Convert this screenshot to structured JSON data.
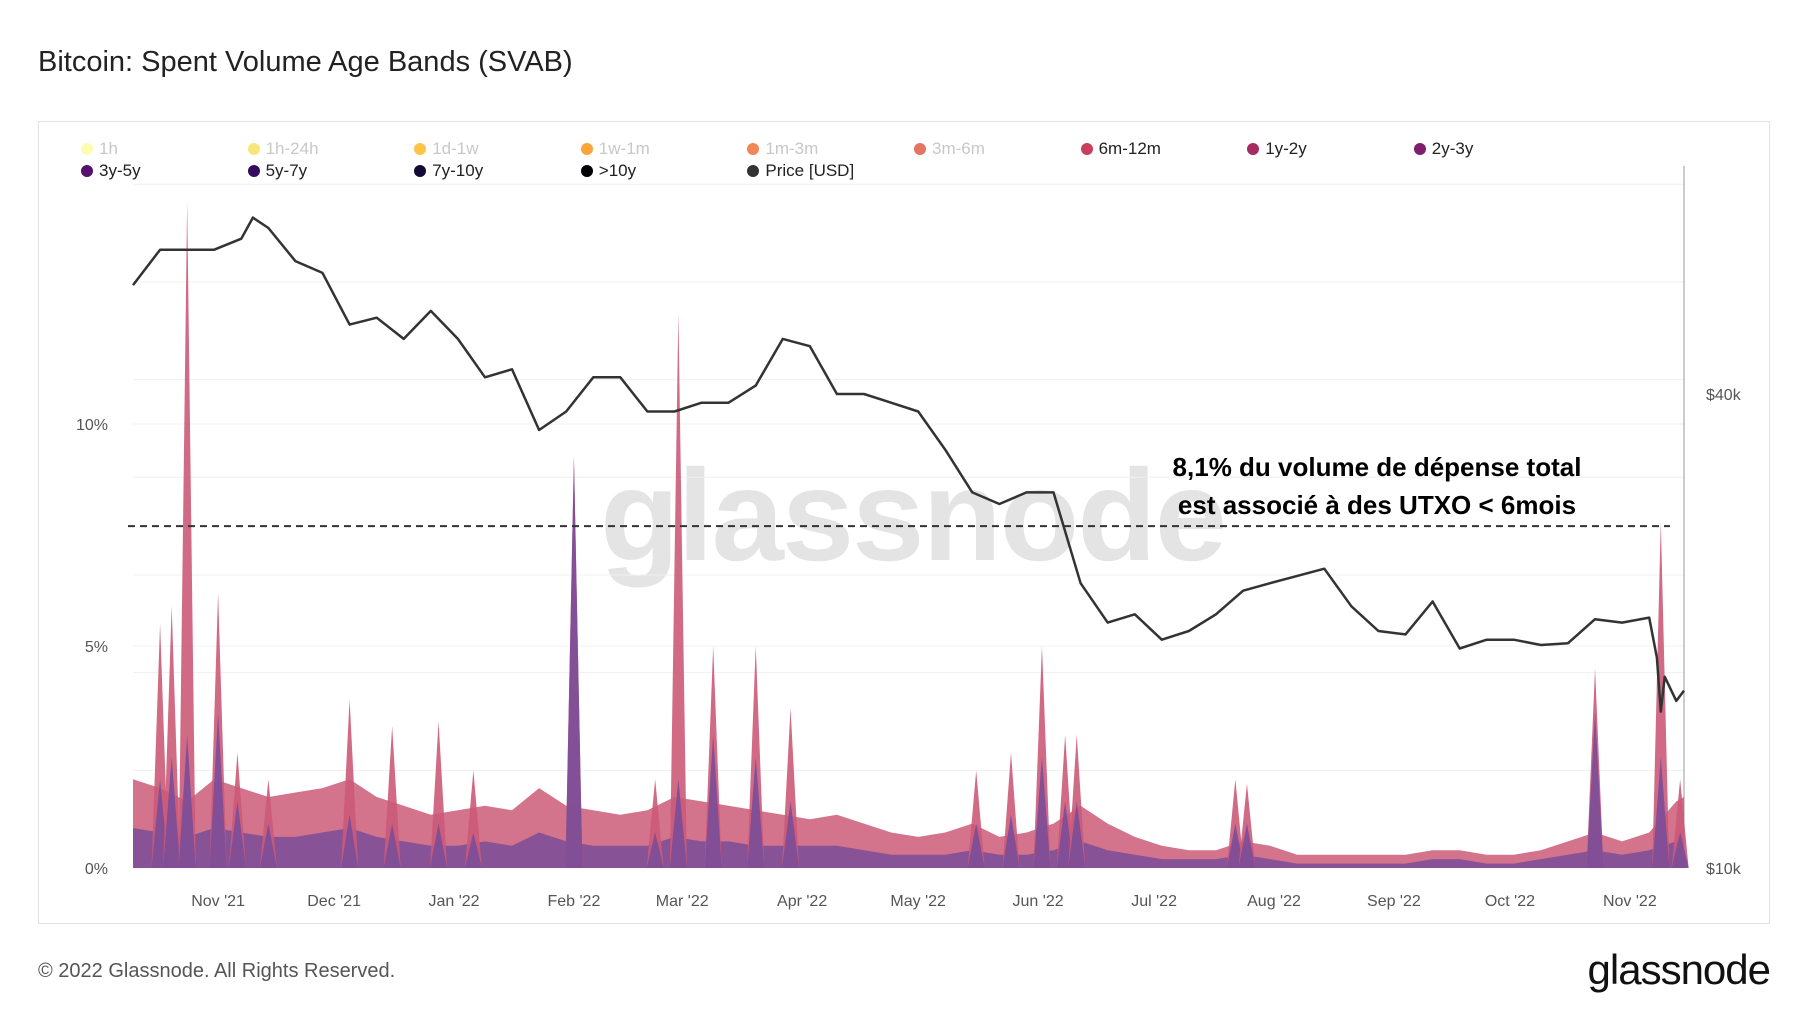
{
  "title": "Bitcoin: Spent Volume Age Bands (SVAB)",
  "footer": "© 2022 Glassnode. All Rights Reserved.",
  "logo": "glassnode",
  "watermark": "glassnode",
  "annotation": [
    "8,1% du volume de dépense total",
    "est associé à des UTXO < 6mois"
  ],
  "legend": [
    {
      "label": "1h",
      "color": "#fdfd9f",
      "active": false
    },
    {
      "label": "1h-24h",
      "color": "#f6e05a",
      "active": false
    },
    {
      "label": "1d-1w",
      "color": "#fbb61a",
      "active": false
    },
    {
      "label": "1w-1m",
      "color": "#f98e09",
      "active": false
    },
    {
      "label": "1m-3m",
      "color": "#ec6929",
      "active": false
    },
    {
      "label": "3m-6m",
      "color": "#dd513a",
      "active": false
    },
    {
      "label": "6m-12m",
      "color": "#c83f5e",
      "active": true
    },
    {
      "label": "1y-2y",
      "color": "#a52c60",
      "active": true
    },
    {
      "label": "2y-3y",
      "color": "#7f1e6d",
      "active": true
    },
    {
      "label": "3y-5y",
      "color": "#57106e",
      "active": true
    },
    {
      "label": "5y-7y",
      "color": "#330a5f",
      "active": true
    },
    {
      "label": "7y-10y",
      "color": "#140b35",
      "active": true
    },
    {
      "label": ">10y",
      "color": "#000004",
      "active": true
    },
    {
      "label": "Price [USD]",
      "color": "#333333",
      "active": true
    }
  ],
  "chart_data": {
    "type": "area",
    "x_range": [
      "2021-10-10",
      "2022-11-15"
    ],
    "x_ticks": [
      "Nov '21",
      "Dec '21",
      "Jan '22",
      "Feb '22",
      "Mar '22",
      "Apr '22",
      "May '22",
      "Jun '22",
      "Jul '22",
      "Aug '22",
      "Sep '22",
      "Oct '22",
      "Nov '22"
    ],
    "x_tick_dates": [
      "2021-11-01",
      "2021-12-01",
      "2022-01-01",
      "2022-02-01",
      "2022-03-01",
      "2022-04-01",
      "2022-05-01",
      "2022-06-01",
      "2022-07-01",
      "2022-08-01",
      "2022-09-01",
      "2022-10-01",
      "2022-11-01"
    ],
    "y_left": {
      "ticks": [
        "0%",
        "5%",
        "10%"
      ],
      "tick_values": [
        0,
        5,
        10
      ],
      "range": [
        0,
        15.9
      ]
    },
    "y_right": {
      "ticks": [
        "$10k",
        "$40k"
      ],
      "tick_values": [
        10000,
        40000
      ],
      "scale": "log"
    },
    "grid": true,
    "reference_line": {
      "value": 7.7,
      "style": "dashed"
    },
    "colors": {
      "young_bands": "#cc5a78",
      "older_bands": "#7a4c98",
      "price": "#333333"
    },
    "volume_baseline": [
      [
        "2021-10-10",
        2.0,
        0.9
      ],
      [
        "2021-10-17",
        1.8,
        0.8
      ],
      [
        "2021-10-24",
        1.5,
        0.7
      ],
      [
        "2021-10-31",
        2.0,
        0.9
      ],
      [
        "2021-11-07",
        1.8,
        0.8
      ],
      [
        "2021-11-14",
        1.6,
        0.7
      ],
      [
        "2021-11-21",
        1.7,
        0.7
      ],
      [
        "2021-11-28",
        1.8,
        0.8
      ],
      [
        "2021-12-05",
        2.0,
        0.9
      ],
      [
        "2021-12-12",
        1.6,
        0.7
      ],
      [
        "2021-12-19",
        1.4,
        0.6
      ],
      [
        "2021-12-26",
        1.2,
        0.5
      ],
      [
        "2022-01-02",
        1.3,
        0.5
      ],
      [
        "2022-01-09",
        1.4,
        0.6
      ],
      [
        "2022-01-16",
        1.3,
        0.5
      ],
      [
        "2022-01-23",
        1.8,
        0.8
      ],
      [
        "2022-01-30",
        1.4,
        0.6
      ],
      [
        "2022-02-06",
        1.3,
        0.5
      ],
      [
        "2022-02-13",
        1.2,
        0.5
      ],
      [
        "2022-02-20",
        1.3,
        0.5
      ],
      [
        "2022-02-27",
        1.6,
        0.7
      ],
      [
        "2022-03-06",
        1.5,
        0.6
      ],
      [
        "2022-03-13",
        1.4,
        0.6
      ],
      [
        "2022-03-20",
        1.3,
        0.5
      ],
      [
        "2022-03-27",
        1.2,
        0.5
      ],
      [
        "2022-04-03",
        1.1,
        0.5
      ],
      [
        "2022-04-10",
        1.2,
        0.5
      ],
      [
        "2022-04-17",
        1.0,
        0.4
      ],
      [
        "2022-04-24",
        0.8,
        0.3
      ],
      [
        "2022-05-01",
        0.7,
        0.3
      ],
      [
        "2022-05-08",
        0.8,
        0.3
      ],
      [
        "2022-05-15",
        1.0,
        0.4
      ],
      [
        "2022-05-22",
        0.7,
        0.3
      ],
      [
        "2022-05-29",
        0.8,
        0.3
      ],
      [
        "2022-06-05",
        1.0,
        0.4
      ],
      [
        "2022-06-12",
        1.4,
        0.6
      ],
      [
        "2022-06-19",
        1.0,
        0.4
      ],
      [
        "2022-06-26",
        0.7,
        0.3
      ],
      [
        "2022-07-03",
        0.5,
        0.2
      ],
      [
        "2022-07-10",
        0.4,
        0.2
      ],
      [
        "2022-07-17",
        0.4,
        0.2
      ],
      [
        "2022-07-24",
        0.6,
        0.3
      ],
      [
        "2022-07-31",
        0.5,
        0.2
      ],
      [
        "2022-08-07",
        0.3,
        0.1
      ],
      [
        "2022-08-14",
        0.3,
        0.1
      ],
      [
        "2022-08-21",
        0.3,
        0.1
      ],
      [
        "2022-08-28",
        0.3,
        0.1
      ],
      [
        "2022-09-04",
        0.3,
        0.1
      ],
      [
        "2022-09-11",
        0.4,
        0.2
      ],
      [
        "2022-09-18",
        0.4,
        0.2
      ],
      [
        "2022-09-25",
        0.3,
        0.1
      ],
      [
        "2022-10-02",
        0.3,
        0.1
      ],
      [
        "2022-10-09",
        0.4,
        0.2
      ],
      [
        "2022-10-16",
        0.6,
        0.3
      ],
      [
        "2022-10-23",
        0.8,
        0.4
      ],
      [
        "2022-10-30",
        0.6,
        0.3
      ],
      [
        "2022-11-06",
        0.8,
        0.4
      ],
      [
        "2022-11-13",
        1.5,
        0.6
      ],
      [
        "2022-11-15",
        1.6,
        0.6
      ]
    ],
    "volume_spikes": [
      [
        "2021-10-17",
        5.5,
        2.0
      ],
      [
        "2021-10-20",
        5.9,
        2.5
      ],
      [
        "2021-10-24",
        15.0,
        3.0
      ],
      [
        "2021-11-01",
        6.2,
        3.5
      ],
      [
        "2021-11-06",
        2.6,
        1.5
      ],
      [
        "2021-11-14",
        2.0,
        1.0
      ],
      [
        "2021-12-05",
        3.8,
        1.2
      ],
      [
        "2021-12-16",
        3.2,
        1.0
      ],
      [
        "2021-12-28",
        3.3,
        1.0
      ],
      [
        "2022-01-06",
        2.2,
        0.8
      ],
      [
        "2022-02-01",
        9.3,
        9.2
      ],
      [
        "2022-02-22",
        2.0,
        0.8
      ],
      [
        "2022-02-28",
        12.5,
        2.0
      ],
      [
        "2022-03-09",
        5.0,
        3.0
      ],
      [
        "2022-03-20",
        5.0,
        2.5
      ],
      [
        "2022-03-29",
        3.6,
        1.5
      ],
      [
        "2022-05-16",
        2.2,
        1.0
      ],
      [
        "2022-05-25",
        2.6,
        1.2
      ],
      [
        "2022-06-02",
        5.0,
        2.5
      ],
      [
        "2022-06-08",
        3.0,
        1.5
      ],
      [
        "2022-06-11",
        3.0,
        1.5
      ],
      [
        "2022-07-22",
        2.0,
        1.0
      ],
      [
        "2022-07-25",
        1.9,
        1.0
      ],
      [
        "2022-10-23",
        4.5,
        3.5
      ],
      [
        "2022-11-09",
        7.8,
        2.5
      ],
      [
        "2022-11-14",
        2.0,
        0.8
      ]
    ],
    "price": [
      [
        "2021-10-10",
        55000
      ],
      [
        "2021-10-17",
        61000
      ],
      [
        "2021-10-24",
        61000
      ],
      [
        "2021-10-31",
        61000
      ],
      [
        "2021-11-07",
        63000
      ],
      [
        "2021-11-10",
        67000
      ],
      [
        "2021-11-14",
        65000
      ],
      [
        "2021-11-21",
        59000
      ],
      [
        "2021-11-28",
        57000
      ],
      [
        "2021-12-05",
        49000
      ],
      [
        "2021-12-12",
        50000
      ],
      [
        "2021-12-19",
        47000
      ],
      [
        "2021-12-26",
        51000
      ],
      [
        "2022-01-02",
        47000
      ],
      [
        "2022-01-09",
        42000
      ],
      [
        "2022-01-16",
        43000
      ],
      [
        "2022-01-23",
        36000
      ],
      [
        "2022-01-30",
        38000
      ],
      [
        "2022-02-06",
        42000
      ],
      [
        "2022-02-13",
        42000
      ],
      [
        "2022-02-20",
        38000
      ],
      [
        "2022-02-27",
        38000
      ],
      [
        "2022-03-06",
        39000
      ],
      [
        "2022-03-13",
        39000
      ],
      [
        "2022-03-20",
        41000
      ],
      [
        "2022-03-27",
        47000
      ],
      [
        "2022-04-03",
        46000
      ],
      [
        "2022-04-10",
        40000
      ],
      [
        "2022-04-17",
        40000
      ],
      [
        "2022-04-24",
        39000
      ],
      [
        "2022-05-01",
        38000
      ],
      [
        "2022-05-08",
        34000
      ],
      [
        "2022-05-15",
        30000
      ],
      [
        "2022-05-22",
        29000
      ],
      [
        "2022-05-29",
        30000
      ],
      [
        "2022-06-05",
        30000
      ],
      [
        "2022-06-12",
        23000
      ],
      [
        "2022-06-19",
        20500
      ],
      [
        "2022-06-26",
        21000
      ],
      [
        "2022-07-03",
        19500
      ],
      [
        "2022-07-10",
        20000
      ],
      [
        "2022-07-17",
        21000
      ],
      [
        "2022-07-24",
        22500
      ],
      [
        "2022-07-31",
        23000
      ],
      [
        "2022-08-07",
        23500
      ],
      [
        "2022-08-14",
        24000
      ],
      [
        "2022-08-21",
        21500
      ],
      [
        "2022-08-28",
        20000
      ],
      [
        "2022-09-04",
        19800
      ],
      [
        "2022-09-11",
        21800
      ],
      [
        "2022-09-18",
        19000
      ],
      [
        "2022-09-25",
        19500
      ],
      [
        "2022-10-02",
        19500
      ],
      [
        "2022-10-09",
        19200
      ],
      [
        "2022-10-16",
        19300
      ],
      [
        "2022-10-23",
        20700
      ],
      [
        "2022-10-30",
        20500
      ],
      [
        "2022-11-06",
        20800
      ],
      [
        "2022-11-08",
        18500
      ],
      [
        "2022-11-09",
        15800
      ],
      [
        "2022-11-10",
        17500
      ],
      [
        "2022-11-13",
        16300
      ],
      [
        "2022-11-15",
        16800
      ]
    ]
  }
}
